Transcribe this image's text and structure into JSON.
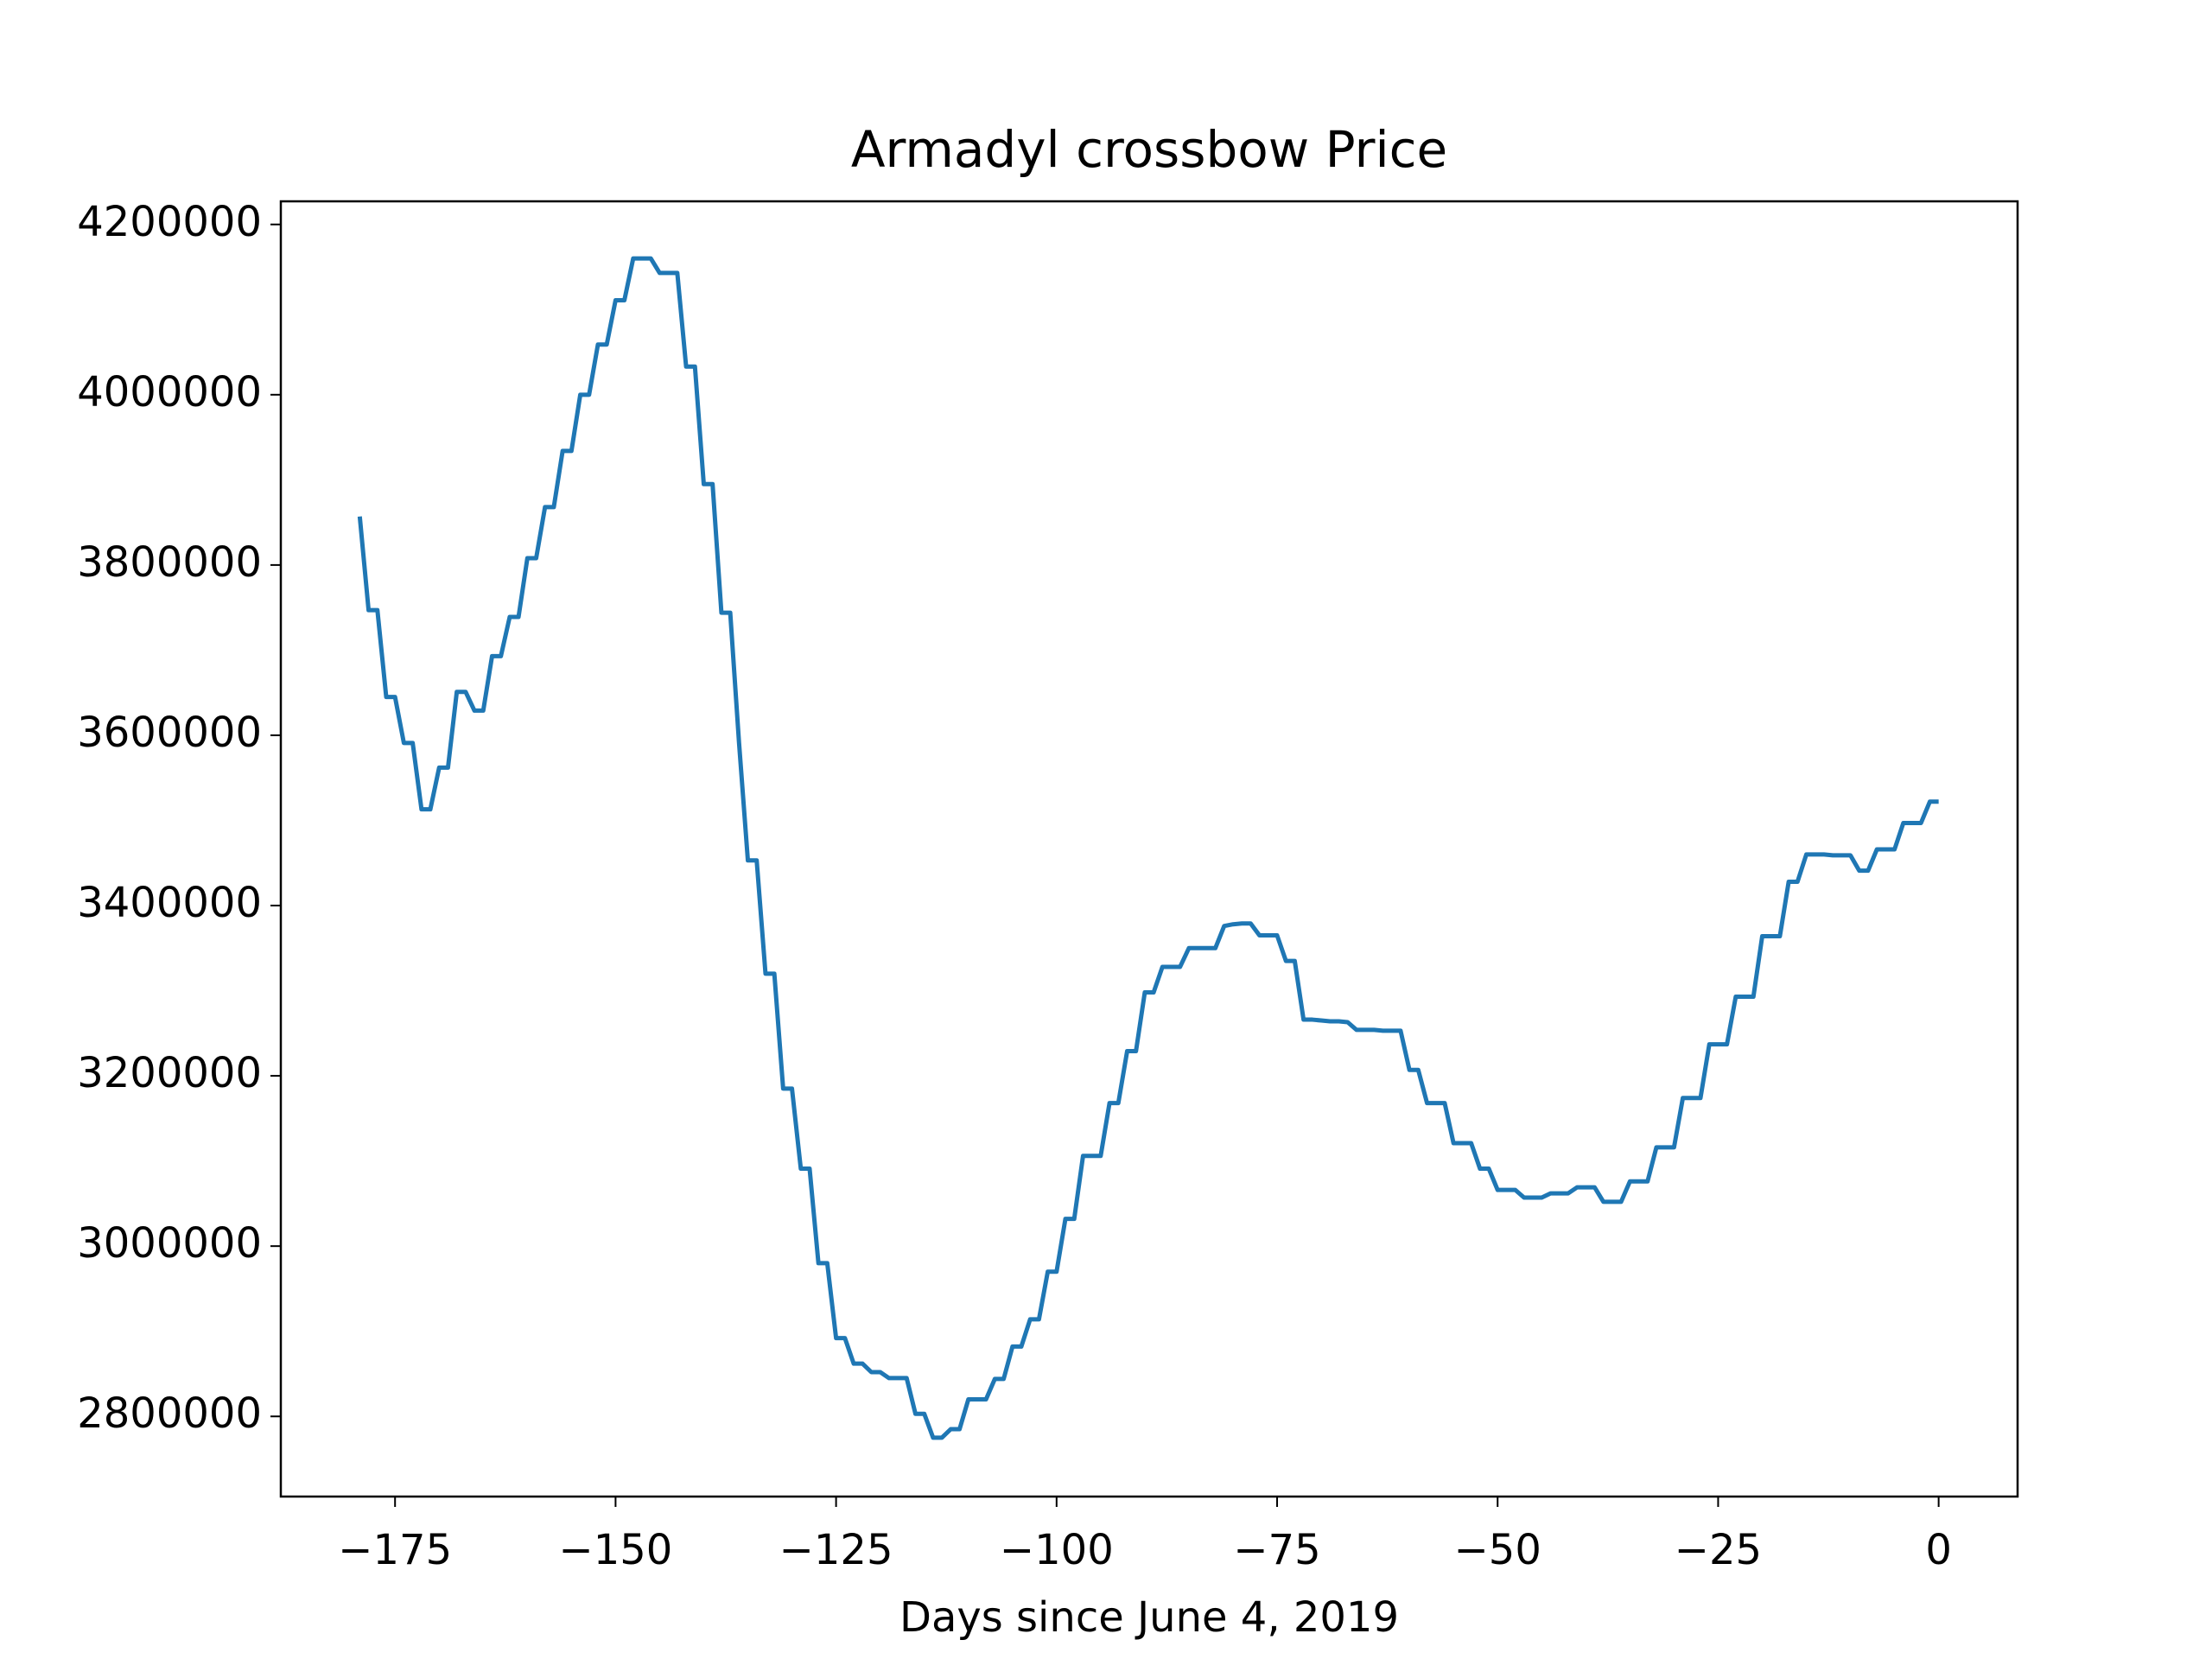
{
  "chart_data": {
    "type": "line",
    "title": "Armadyl crossbow Price",
    "x_label": "Days since June 4, 2019",
    "x": [
      -179,
      -178,
      -177,
      -176,
      -175,
      -174,
      -173,
      -172,
      -171,
      -170,
      -169,
      -168,
      -167,
      -166,
      -165,
      -164,
      -163,
      -162,
      -161,
      -160,
      -159,
      -158,
      -157,
      -156,
      -155,
      -154,
      -153,
      -152,
      -151,
      -150,
      -149,
      -148,
      -147,
      -146,
      -145,
      -144,
      -143,
      -142,
      -141,
      -140,
      -139,
      -138,
      -137,
      -136,
      -135,
      -134,
      -133,
      -132,
      -131,
      -130,
      -129,
      -128,
      -127,
      -126,
      -125,
      -124,
      -123,
      -122,
      -121,
      -120,
      -119,
      -118,
      -117,
      -116,
      -115,
      -114,
      -113,
      -112,
      -111,
      -110,
      -109,
      -108,
      -107,
      -106,
      -105,
      -104,
      -103,
      -102,
      -101,
      -100,
      -99,
      -98,
      -97,
      -96,
      -95,
      -94,
      -93,
      -92,
      -91,
      -90,
      -89,
      -88,
      -87,
      -86,
      -85,
      -84,
      -83,
      -82,
      -81,
      -80,
      -79,
      -78,
      -77,
      -76,
      -75,
      -74,
      -73,
      -72,
      -71,
      -70,
      -69,
      -68,
      -67,
      -66,
      -65,
      -64,
      -63,
      -62,
      -61,
      -60,
      -59,
      -58,
      -57,
      -56,
      -55,
      -54,
      -53,
      -52,
      -51,
      -50,
      -49,
      -48,
      -47,
      -46,
      -45,
      -44,
      -43,
      -42,
      -41,
      -40,
      -39,
      -38,
      -37,
      -36,
      -35,
      -34,
      -33,
      -32,
      -31,
      -30,
      -29,
      -28,
      -27,
      -26,
      -25,
      -24,
      -23,
      -22,
      -21,
      -20,
      -19,
      -18,
      -17,
      -16,
      -15,
      -14,
      -13,
      -12,
      -11,
      -10,
      -9,
      -8,
      -7,
      -6,
      -5,
      -4,
      -3,
      -2,
      -1,
      0
    ],
    "series": [
      {
        "color": "#1f77b4",
        "values": [
          3857000,
          3747000,
          3747000,
          3645000,
          3645000,
          3591000,
          3591000,
          3513000,
          3513000,
          3562000,
          3562000,
          3651000,
          3651000,
          3629000,
          3629000,
          3693000,
          3693000,
          3739000,
          3739000,
          3808000,
          3808000,
          3868000,
          3868000,
          3934000,
          3934000,
          4000000,
          4000000,
          4059000,
          4059000,
          4111000,
          4111000,
          4160000,
          4160000,
          4160000,
          4143000,
          4143000,
          4143000,
          4033000,
          4033000,
          3895000,
          3895000,
          3744000,
          3744000,
          3591000,
          3453000,
          3453000,
          3320000,
          3320000,
          3185000,
          3185000,
          3091000,
          3091000,
          2980000,
          2980000,
          2892000,
          2892000,
          2862000,
          2862000,
          2852000,
          2852000,
          2845000,
          2845000,
          2845000,
          2803000,
          2803000,
          2775000,
          2775000,
          2785000,
          2785000,
          2820000,
          2820000,
          2820000,
          2844000,
          2844000,
          2882000,
          2882000,
          2914000,
          2914000,
          2970000,
          2970000,
          3032000,
          3032000,
          3106000,
          3106000,
          3106000,
          3168000,
          3168000,
          3229000,
          3229000,
          3298000,
          3298000,
          3328000,
          3328000,
          3328000,
          3350000,
          3350000,
          3350000,
          3350000,
          3376000,
          3378000,
          3379000,
          3379000,
          3365000,
          3365000,
          3365000,
          3335000,
          3335000,
          3266000,
          3266000,
          3265000,
          3264000,
          3264000,
          3263000,
          3254000,
          3254000,
          3254000,
          3253000,
          3253000,
          3253000,
          3207000,
          3207000,
          3168000,
          3168000,
          3168000,
          3121000,
          3121000,
          3121000,
          3091000,
          3091000,
          3066000,
          3066000,
          3066000,
          3057000,
          3057000,
          3057000,
          3062000,
          3062000,
          3062000,
          3069000,
          3069000,
          3069000,
          3052000,
          3052000,
          3052000,
          3076000,
          3076000,
          3076000,
          3116000,
          3116000,
          3116000,
          3174000,
          3174000,
          3174000,
          3237000,
          3237000,
          3237000,
          3293000,
          3293000,
          3293000,
          3364000,
          3364000,
          3364000,
          3428000,
          3428000,
          3460000,
          3460000,
          3460000,
          3459000,
          3459000,
          3459000,
          3441000,
          3441000,
          3466000,
          3466000,
          3466000,
          3497000,
          3497000,
          3497000,
          3522000,
          3522000
        ]
      }
    ],
    "xlim": [
      -187.95,
      8.95
    ],
    "xticks": [
      {
        "value": -175,
        "label": "−175"
      },
      {
        "value": -150,
        "label": "−150"
      },
      {
        "value": -125,
        "label": "−125"
      },
      {
        "value": -100,
        "label": "−100"
      },
      {
        "value": -75,
        "label": "−75"
      },
      {
        "value": -50,
        "label": "−50"
      },
      {
        "value": -25,
        "label": "−25"
      },
      0
    ],
    "ylim": [
      2705850,
      4227150
    ],
    "yticks": [
      2800000,
      3000000,
      3200000,
      3400000,
      3600000,
      3800000,
      4000000,
      4200000
    ],
    "grid": false
  }
}
